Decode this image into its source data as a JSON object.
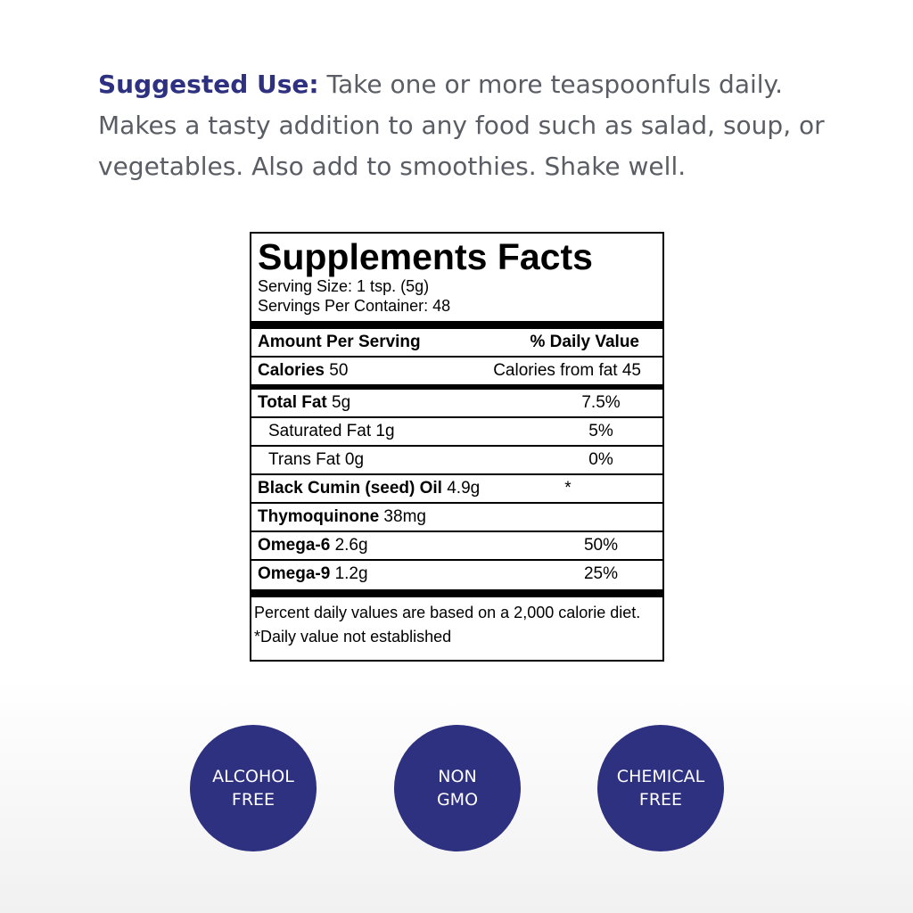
{
  "usage": {
    "label": "Suggested Use:",
    "text": " Take one or more teaspoonfuls daily. Makes a tasty addition to any food such as salad, soup, or vegetables. Also add to smoothies. Shake well."
  },
  "facts": {
    "title": "Supplements Facts",
    "serving_size": "Serving Size: 1 tsp. (5g)",
    "servings_per_container": "Servings Per Container: 48",
    "amount_header": "Amount Per Serving",
    "dv_header": "% Daily Value",
    "calories_label": "Calories",
    "calories_value": " 50",
    "calories_from_fat": "Calories from fat 45",
    "rows": [
      {
        "name": "Total Fat",
        "amount": " 5g",
        "dv": "7.5%"
      },
      {
        "name": "Saturated Fat 1g",
        "amount": "",
        "dv": "5%"
      },
      {
        "name": "Trans Fat 0g",
        "amount": "",
        "dv": "0%"
      },
      {
        "name": "Black Cumin (seed) Oil",
        "amount": " 4.9g",
        "dv": "*"
      },
      {
        "name": "Thymoquinone",
        "amount": " 38mg",
        "dv": ""
      },
      {
        "name": "Omega-6",
        "amount": " 2.6g",
        "dv": "50%"
      },
      {
        "name": "Omega-9",
        "amount": " 1.2g",
        "dv": "25%"
      }
    ],
    "footnote1": "Percent daily values are based on a 2,000 calorie diet.",
    "footnote2": "*Daily value not established"
  },
  "badges": [
    {
      "line1": "ALCOHOL",
      "line2": "FREE"
    },
    {
      "line1": "NON",
      "line2": "GMO"
    },
    {
      "line1": "CHEMICAL",
      "line2": "FREE"
    }
  ],
  "colors": {
    "brand": "#2e3080",
    "body_text": "#5a5d64"
  }
}
